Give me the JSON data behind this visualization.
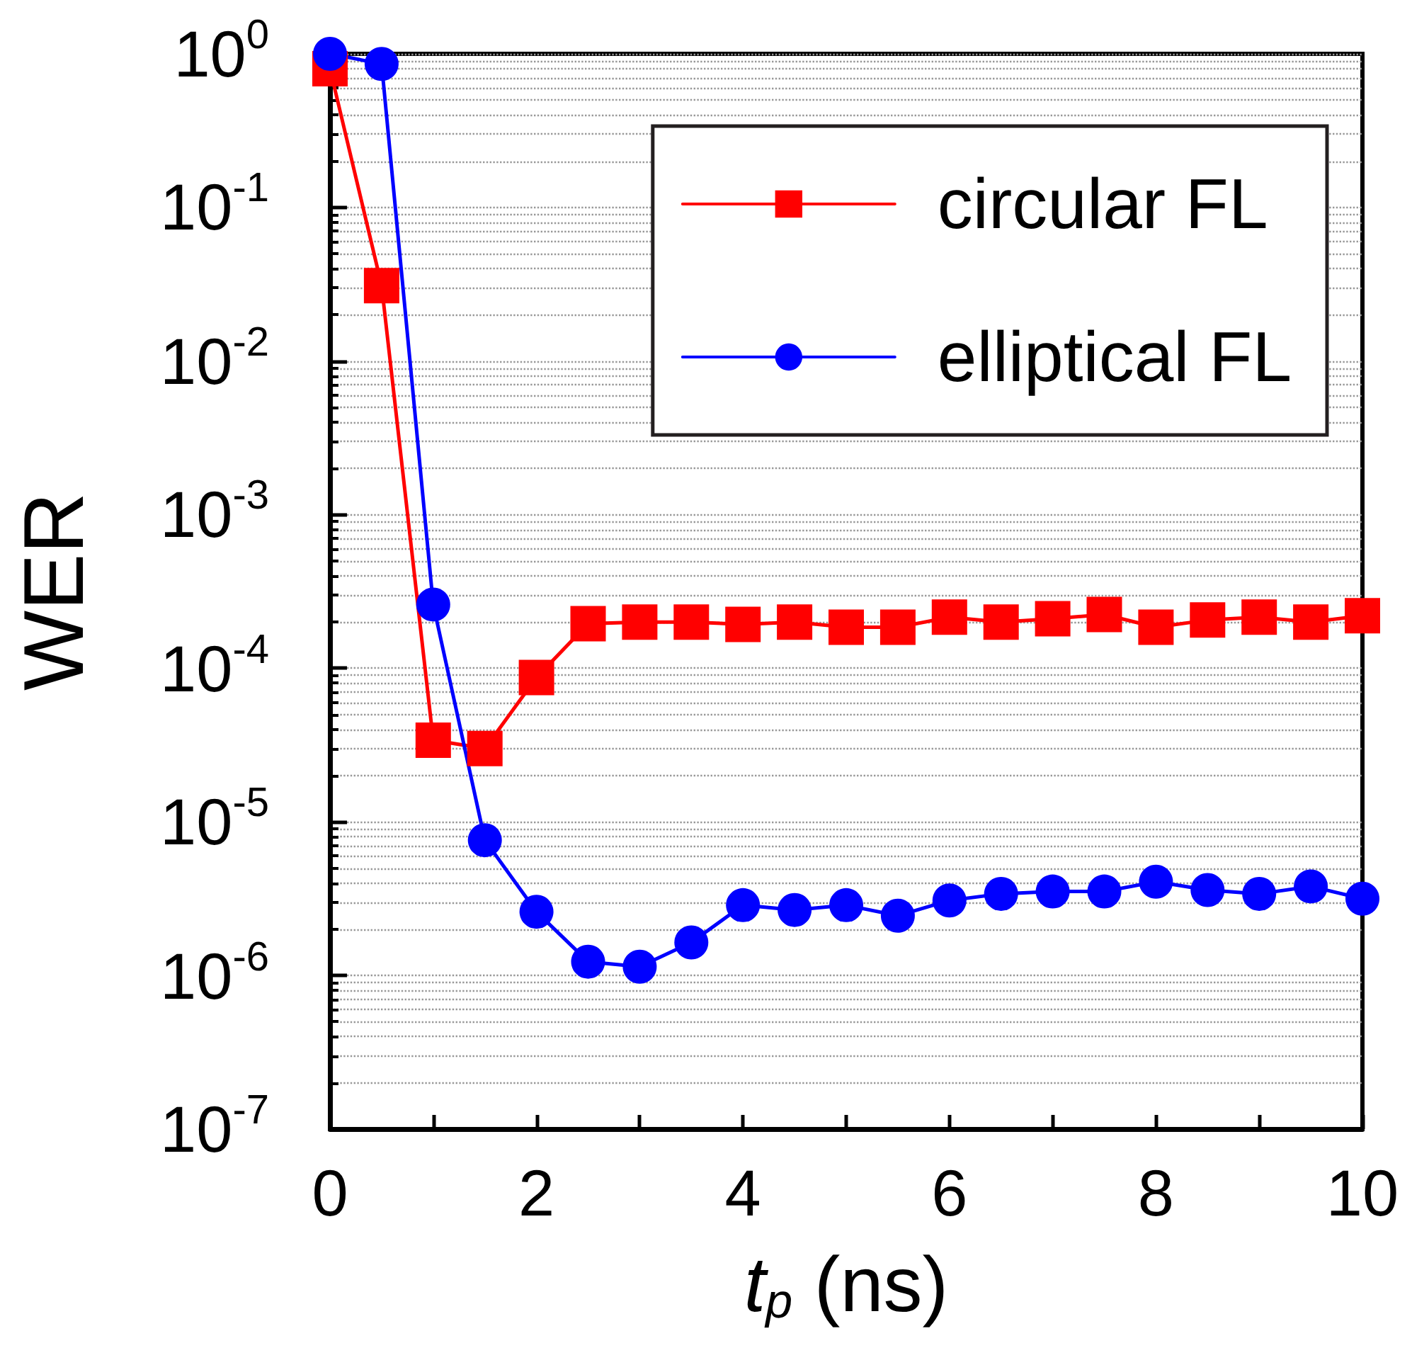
{
  "chart_data": {
    "type": "line",
    "xlabel": "t$_{p}$ (ns)",
    "ylabel": "WER",
    "x": [
      0,
      0.5,
      1,
      1.5,
      2,
      2.5,
      3,
      3.5,
      4,
      4.5,
      5,
      5.5,
      6,
      6.5,
      7,
      7.5,
      8,
      8.5,
      9,
      9.5,
      10
    ],
    "series": [
      {
        "name": "circular FL",
        "color": "#ff0000",
        "marker": "square",
        "values": [
          0.8,
          0.031,
          3.4e-05,
          3e-05,
          8.7e-05,
          0.000195,
          0.0002,
          0.0002,
          0.000193,
          0.0002,
          0.000185,
          0.000185,
          0.000215,
          0.0002,
          0.00021,
          0.000224,
          0.000185,
          0.000206,
          0.000215,
          0.0002,
          0.00022
        ]
      },
      {
        "name": "elliptical FL",
        "color": "#0000ff",
        "marker": "circle",
        "values": [
          1.0,
          0.86,
          0.00026,
          7.6e-06,
          2.6e-06,
          1.23e-06,
          1.14e-06,
          1.64e-06,
          2.87e-06,
          2.67e-06,
          2.87e-06,
          2.45e-06,
          3.08e-06,
          3.4e-06,
          3.52e-06,
          3.52e-06,
          4.08e-06,
          3.6e-06,
          3.4e-06,
          3.8e-06,
          3.16e-06
        ]
      }
    ],
    "log": "y",
    "xlim": [
      0,
      10
    ],
    "ylim": [
      1e-07,
      1
    ],
    "xticks": [
      0,
      {
        "value": 1,
        "label": null
      },
      2,
      {
        "value": 3,
        "label": null
      },
      4,
      {
        "value": 5,
        "label": null
      },
      6,
      {
        "value": 7,
        "label": null
      },
      8,
      {
        "value": 9,
        "label": null
      },
      10
    ],
    "yticks": [
      {
        "value": 1e-07,
        "label": "10$^{-7}$"
      },
      {
        "value": 1e-06,
        "label": "10$^{-6}$"
      },
      {
        "value": 1e-05,
        "label": "10$^{-5}$"
      },
      {
        "value": 0.0001,
        "label": "10$^{-4}$"
      },
      {
        "value": 0.001,
        "label": "10$^{-3}$"
      },
      {
        "value": 0.01,
        "label": "10$^{-2}$"
      },
      {
        "value": 0.1,
        "label": "10$^{-1}$"
      },
      {
        "value": 1,
        "label": "10$^{0}$"
      }
    ],
    "grid": "y",
    "legend": "top right",
    "line_style": "solid"
  }
}
